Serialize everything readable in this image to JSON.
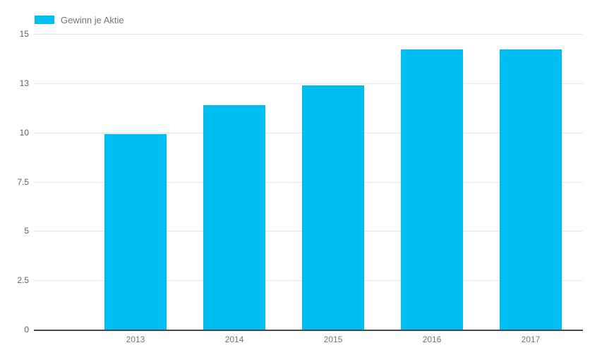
{
  "chart_data": {
    "type": "bar",
    "title": "",
    "xlabel": "",
    "ylabel": "",
    "categories": [
      "2013",
      "2014",
      "2015",
      "2016",
      "2017"
    ],
    "series": [
      {
        "name": "Gewinn je Aktie",
        "values": [
          9.9,
          11.4,
          12.4,
          14.2,
          14.2
        ]
      }
    ],
    "ylim": [
      0,
      15
    ],
    "y_ticks": [
      {
        "label": "0",
        "value": 0
      },
      {
        "label": "2.5",
        "value": 2.5
      },
      {
        "label": "5",
        "value": 5
      },
      {
        "label": "7.5",
        "value": 7.5
      },
      {
        "label": "10",
        "value": 10
      },
      {
        "label": "13",
        "value": 12.5
      },
      {
        "label": "15",
        "value": 15
      }
    ],
    "grid": true,
    "legend_position": "top-left",
    "colors": {
      "bar": "#00bff0",
      "gridline": "#e6e6e6",
      "baseline": "#4a4a4a",
      "y_tick_text": "#616161",
      "x_tick_text": "#757575",
      "legend_text": "#757575",
      "background": "#ffffff"
    }
  }
}
